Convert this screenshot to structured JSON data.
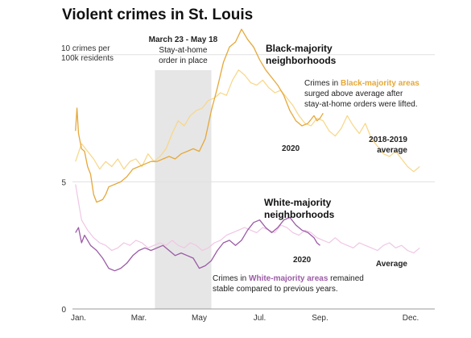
{
  "chart_data": {
    "type": "line",
    "title": "Violent crimes in St. Louis",
    "ylabel": "10 crimes per 100k residents",
    "ylim": [
      0,
      10.5
    ],
    "yticks": [
      {
        "value": 0,
        "label": "0"
      },
      {
        "value": 5,
        "label": "5"
      },
      {
        "value": 10,
        "label": "10 crimes per\n100k residents"
      }
    ],
    "x_domain": [
      0,
      12
    ],
    "xticks": [
      {
        "value": 0.2,
        "label": "Jan."
      },
      {
        "value": 2.2,
        "label": "Mar."
      },
      {
        "value": 4.2,
        "label": "May"
      },
      {
        "value": 6.2,
        "label": "Jul."
      },
      {
        "value": 8.2,
        "label": "Sep."
      },
      {
        "value": 11.2,
        "label": "Dec."
      }
    ],
    "shaded_period": {
      "start": 2.73,
      "end": 4.6,
      "label_bold": "March 23 - May 18",
      "label": [
        "Stay-at-home",
        "order in place"
      ]
    },
    "colors": {
      "black_2020": "#e5a83a",
      "black_avg": "#f8d684",
      "white_2020": "#9b5ba6",
      "white_avg": "#f0c6e4",
      "shade": "#e6e6e6",
      "grid": "#e0e0e0"
    },
    "series": [
      {
        "name": "2020",
        "group": "Black-majority neighborhoods",
        "x": [
          0.1,
          0.15,
          0.2,
          0.3,
          0.4,
          0.5,
          0.6,
          0.7,
          0.8,
          0.9,
          1.0,
          1.1,
          1.2,
          1.4,
          1.6,
          1.8,
          2.0,
          2.2,
          2.4,
          2.6,
          2.8,
          3.0,
          3.2,
          3.4,
          3.6,
          3.8,
          4.0,
          4.2,
          4.4,
          4.6,
          4.8,
          5.0,
          5.2,
          5.4,
          5.6,
          5.8,
          6.0,
          6.2,
          6.4,
          6.6,
          6.8,
          7.0,
          7.2,
          7.4,
          7.6,
          7.8,
          8.0,
          8.1,
          8.2,
          8.3
        ],
        "values": [
          7.0,
          7.9,
          6.9,
          6.3,
          6.2,
          5.6,
          5.3,
          4.5,
          4.2,
          4.25,
          4.3,
          4.5,
          4.8,
          4.9,
          5.0,
          5.2,
          5.5,
          5.6,
          5.7,
          5.8,
          5.8,
          5.9,
          6.0,
          5.9,
          6.1,
          6.2,
          6.3,
          6.2,
          6.7,
          7.8,
          8.7,
          9.7,
          10.3,
          10.5,
          11.0,
          10.6,
          10.3,
          9.8,
          9.4,
          9.1,
          8.8,
          8.4,
          7.8,
          7.4,
          7.2,
          7.3,
          7.6,
          7.4,
          7.5,
          7.7
        ]
      },
      {
        "name": "2018-2019 average",
        "group": "Black-majority neighborhoods",
        "x": [
          0.1,
          0.3,
          0.5,
          0.7,
          0.9,
          1.1,
          1.3,
          1.5,
          1.7,
          1.9,
          2.1,
          2.3,
          2.5,
          2.7,
          2.9,
          3.1,
          3.3,
          3.5,
          3.7,
          3.9,
          4.1,
          4.3,
          4.5,
          4.7,
          4.9,
          5.1,
          5.3,
          5.5,
          5.7,
          5.9,
          6.1,
          6.3,
          6.5,
          6.7,
          6.9,
          7.1,
          7.3,
          7.5,
          7.7,
          7.9,
          8.1,
          8.3,
          8.5,
          8.7,
          8.9,
          9.1,
          9.3,
          9.5,
          9.7,
          9.9,
          10.1,
          10.3,
          10.5,
          10.7,
          10.9,
          11.1,
          11.3,
          11.5
        ],
        "values": [
          5.8,
          6.5,
          6.2,
          5.9,
          5.5,
          5.8,
          5.6,
          5.9,
          5.5,
          5.8,
          5.9,
          5.6,
          6.1,
          5.8,
          6.0,
          6.3,
          6.9,
          7.4,
          7.2,
          7.6,
          7.8,
          7.9,
          8.2,
          8.3,
          8.5,
          8.4,
          9.0,
          9.4,
          9.2,
          8.9,
          8.8,
          9.0,
          8.7,
          8.5,
          8.6,
          8.3,
          8.0,
          7.6,
          7.3,
          7.2,
          7.5,
          7.4,
          7.0,
          6.8,
          7.1,
          7.6,
          7.2,
          6.9,
          7.3,
          6.7,
          6.4,
          6.1,
          6.0,
          6.2,
          5.9,
          5.6,
          5.4,
          5.6
        ]
      },
      {
        "name": "2020",
        "group": "White-majority neighborhoods",
        "x": [
          0.1,
          0.2,
          0.3,
          0.4,
          0.6,
          0.8,
          1.0,
          1.2,
          1.4,
          1.6,
          1.8,
          2.0,
          2.2,
          2.4,
          2.6,
          2.8,
          3.0,
          3.2,
          3.4,
          3.6,
          3.8,
          4.0,
          4.2,
          4.4,
          4.6,
          4.8,
          5.0,
          5.2,
          5.4,
          5.6,
          5.8,
          6.0,
          6.2,
          6.4,
          6.6,
          6.8,
          7.0,
          7.2,
          7.4,
          7.6,
          7.8,
          8.0,
          8.1,
          8.2
        ],
        "values": [
          3.0,
          3.2,
          2.6,
          2.9,
          2.5,
          2.3,
          2.0,
          1.6,
          1.5,
          1.6,
          1.8,
          2.1,
          2.3,
          2.4,
          2.3,
          2.4,
          2.5,
          2.3,
          2.1,
          2.2,
          2.1,
          2.0,
          1.6,
          1.7,
          1.9,
          2.3,
          2.6,
          2.7,
          2.5,
          2.7,
          3.1,
          3.4,
          3.5,
          3.2,
          3.0,
          3.2,
          3.5,
          3.6,
          3.3,
          3.1,
          3.0,
          2.8,
          2.6,
          2.5
        ]
      },
      {
        "name": "Average",
        "group": "White-majority neighborhoods",
        "x": [
          0.1,
          0.2,
          0.3,
          0.5,
          0.7,
          0.9,
          1.1,
          1.3,
          1.5,
          1.7,
          1.9,
          2.1,
          2.3,
          2.5,
          2.7,
          2.9,
          3.1,
          3.3,
          3.5,
          3.7,
          3.9,
          4.1,
          4.3,
          4.5,
          4.7,
          4.9,
          5.1,
          5.3,
          5.5,
          5.7,
          5.9,
          6.1,
          6.3,
          6.5,
          6.7,
          6.9,
          7.1,
          7.3,
          7.5,
          7.7,
          7.9,
          8.1,
          8.3,
          8.5,
          8.7,
          8.9,
          9.1,
          9.3,
          9.5,
          9.7,
          9.9,
          10.1,
          10.3,
          10.5,
          10.7,
          10.9,
          11.1,
          11.3,
          11.5
        ],
        "values": [
          4.9,
          4.2,
          3.5,
          3.1,
          2.8,
          2.6,
          2.5,
          2.3,
          2.4,
          2.6,
          2.5,
          2.7,
          2.6,
          2.4,
          2.5,
          2.6,
          2.5,
          2.7,
          2.5,
          2.4,
          2.6,
          2.5,
          2.3,
          2.4,
          2.6,
          2.7,
          2.9,
          3.0,
          3.1,
          3.2,
          3.1,
          3.0,
          3.2,
          3.1,
          3.0,
          3.3,
          3.2,
          3.0,
          2.9,
          3.1,
          3.0,
          2.8,
          2.7,
          2.6,
          2.8,
          2.6,
          2.5,
          2.4,
          2.6,
          2.5,
          2.4,
          2.3,
          2.5,
          2.6,
          2.4,
          2.5,
          2.3,
          2.2,
          2.4
        ]
      }
    ],
    "annotations": {
      "black_group": [
        "Black-majority",
        "neighborhoods"
      ],
      "black_note": {
        "pre": "Crimes in ",
        "highlight": "Black-majority areas",
        "line1_rest": "",
        "line2": "surged above average after",
        "line3": "stay-at-home orders were lifted."
      },
      "black_2020_label": "2020",
      "black_avg_label": [
        "2018-2019",
        "average"
      ],
      "white_group": [
        "White-majority",
        "neighborhoods"
      ],
      "white_2020_label": "2020",
      "white_avg_label": "Average",
      "white_note": {
        "pre": "Crimes in ",
        "highlight": "White-majority areas",
        "rest": " remained",
        "line2": "stable compared to previous years."
      }
    }
  }
}
